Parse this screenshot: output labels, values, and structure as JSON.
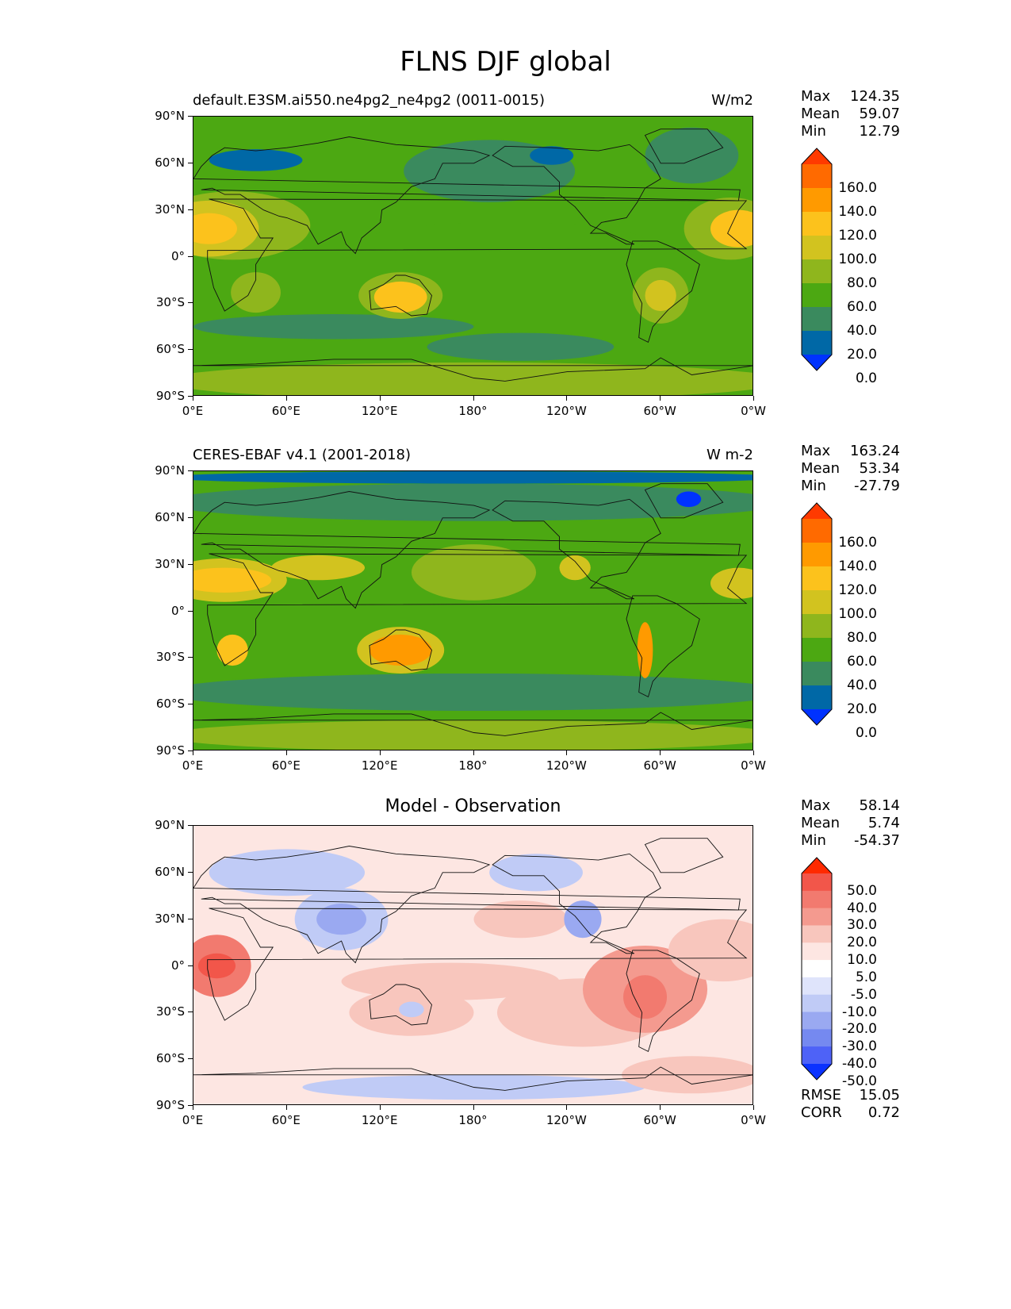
{
  "figure_title": "FLNS DJF global",
  "chart_data": [
    {
      "type": "heatmap",
      "title_left": "default.E3SM.ai550.ne4pg2_ne4pg2 (0011-0015)",
      "title_right": "W/m2",
      "stats": [
        {
          "label": "Max",
          "value": "124.35"
        },
        {
          "label": "Mean",
          "value": "59.07"
        },
        {
          "label": "Min",
          "value": "12.79"
        }
      ],
      "x_ticks": [
        "0°E",
        "60°E",
        "120°E",
        "180°",
        "120°W",
        "60°W",
        "0°W"
      ],
      "y_ticks": [
        "90°N",
        "60°N",
        "30°N",
        "0°",
        "30°S",
        "60°S",
        "90°S"
      ],
      "colorbar_levels": [
        "160.0",
        "140.0",
        "120.0",
        "100.0",
        "80.0",
        "60.0",
        "40.0",
        "20.0",
        "0.0"
      ],
      "colorbar_colors": [
        "#ff3a00",
        "#ff6a00",
        "#ff9a00",
        "#fcc21c",
        "#d2c31f",
        "#8fb61d",
        "#4ca812",
        "#3a8a5e",
        "#0068a6",
        "#0032ff"
      ],
      "blobs": [
        {
          "lon": 10,
          "lat": 18,
          "rx": 18,
          "ry": 10,
          "level": 3
        },
        {
          "lon": 10,
          "lat": 18,
          "rx": 32,
          "ry": 18,
          "level": 4
        },
        {
          "lon": 25,
          "lat": 20,
          "rx": 50,
          "ry": 22,
          "level": 5
        },
        {
          "lon": 40,
          "lat": -23,
          "rx": 16,
          "ry": 13,
          "level": 5
        },
        {
          "lon": 133,
          "lat": -26,
          "rx": 17,
          "ry": 10,
          "level": 3
        },
        {
          "lon": 133,
          "lat": -25,
          "rx": 27,
          "ry": 15,
          "level": 5
        },
        {
          "lon": 300,
          "lat": -25,
          "rx": 10,
          "ry": 10,
          "level": 4
        },
        {
          "lon": 300,
          "lat": -25,
          "rx": 18,
          "ry": 18,
          "level": 5
        },
        {
          "lon": 350,
          "lat": 18,
          "rx": 18,
          "ry": 12,
          "level": 3
        },
        {
          "lon": 345,
          "lat": 18,
          "rx": 30,
          "ry": 20,
          "level": 5
        },
        {
          "lon": 200,
          "lat": 10,
          "rx": 90,
          "ry": 12,
          "level": 6
        },
        {
          "lon": 40,
          "lat": 62,
          "rx": 30,
          "ry": 7,
          "level": 8
        },
        {
          "lon": 230,
          "lat": 65,
          "rx": 14,
          "ry": 6,
          "level": 8
        },
        {
          "lon": 190,
          "lat": 55,
          "rx": 55,
          "ry": 20,
          "level": 7
        },
        {
          "lon": 320,
          "lat": 65,
          "rx": 30,
          "ry": 18,
          "level": 7
        },
        {
          "lon": 90,
          "lat": -45,
          "rx": 90,
          "ry": 8,
          "level": 7
        },
        {
          "lon": 210,
          "lat": -58,
          "rx": 60,
          "ry": 9,
          "level": 7
        },
        {
          "lon": 180,
          "lat": -80,
          "rx": 200,
          "ry": 12,
          "level": 5
        }
      ],
      "base_level": 6
    },
    {
      "type": "heatmap",
      "title_left": "CERES-EBAF v4.1 (2001-2018)",
      "title_right": "W m-2",
      "stats": [
        {
          "label": "Max",
          "value": "163.24"
        },
        {
          "label": "Mean",
          "value": "53.34"
        },
        {
          "label": "Min",
          "value": "-27.79"
        }
      ],
      "x_ticks": [
        "0°E",
        "60°E",
        "120°E",
        "180°",
        "120°W",
        "60°W",
        "0°W"
      ],
      "y_ticks": [
        "90°N",
        "60°N",
        "30°N",
        "0°",
        "30°S",
        "60°S",
        "90°S"
      ],
      "colorbar_levels": [
        "160.0",
        "140.0",
        "120.0",
        "100.0",
        "80.0",
        "60.0",
        "40.0",
        "20.0",
        "0.0"
      ],
      "colorbar_colors": [
        "#ff3a00",
        "#ff6a00",
        "#ff9a00",
        "#fcc21c",
        "#d2c31f",
        "#8fb61d",
        "#4ca812",
        "#3a8a5e",
        "#0068a6",
        "#0032ff"
      ],
      "blobs": [
        {
          "lon": 180,
          "lat": 86,
          "rx": 200,
          "ry": 4,
          "level": 8
        },
        {
          "lon": 180,
          "lat": 70,
          "rx": 200,
          "ry": 12,
          "level": 7
        },
        {
          "lon": 318,
          "lat": 72,
          "rx": 8,
          "ry": 5,
          "level": 9
        },
        {
          "lon": 20,
          "lat": 20,
          "rx": 40,
          "ry": 14,
          "level": 4
        },
        {
          "lon": 20,
          "lat": 20,
          "rx": 30,
          "ry": 8,
          "level": 3
        },
        {
          "lon": 80,
          "lat": 28,
          "rx": 30,
          "ry": 8,
          "level": 4
        },
        {
          "lon": 25,
          "lat": -25,
          "rx": 10,
          "ry": 10,
          "level": 3
        },
        {
          "lon": 133,
          "lat": -25,
          "rx": 20,
          "ry": 10,
          "level": 2
        },
        {
          "lon": 133,
          "lat": -25,
          "rx": 28,
          "ry": 15,
          "level": 4
        },
        {
          "lon": 290,
          "lat": -25,
          "rx": 5,
          "ry": 18,
          "level": 2
        },
        {
          "lon": 245,
          "lat": 28,
          "rx": 10,
          "ry": 8,
          "level": 4
        },
        {
          "lon": 350,
          "lat": 18,
          "rx": 18,
          "ry": 10,
          "level": 4
        },
        {
          "lon": 180,
          "lat": -52,
          "rx": 200,
          "ry": 12,
          "level": 7
        },
        {
          "lon": 180,
          "lat": 25,
          "rx": 40,
          "ry": 18,
          "level": 5
        },
        {
          "lon": 180,
          "lat": -80,
          "rx": 200,
          "ry": 10,
          "level": 5
        }
      ],
      "base_level": 6
    },
    {
      "type": "heatmap",
      "title_center": "Model - Observation",
      "stats": [
        {
          "label": "Max",
          "value": "58.14"
        },
        {
          "label": "Mean",
          "value": "5.74"
        },
        {
          "label": "Min",
          "value": "-54.37"
        }
      ],
      "metrics": [
        {
          "label": "RMSE",
          "value": "15.05"
        },
        {
          "label": "CORR",
          "value": "0.72"
        }
      ],
      "x_ticks": [
        "0°E",
        "60°E",
        "120°E",
        "180°",
        "120°W",
        "60°W",
        "0°W"
      ],
      "y_ticks": [
        "90°N",
        "60°N",
        "30°N",
        "0°",
        "30°S",
        "60°S",
        "90°S"
      ],
      "colorbar_levels": [
        "50.0",
        "40.0",
        "30.0",
        "20.0",
        "10.0",
        "5.0",
        "-5.0",
        "-10.0",
        "-20.0",
        "-30.0",
        "-40.0",
        "-50.0"
      ],
      "colorbar_colors": [
        "#ff2a00",
        "#f2564a",
        "#f27a6f",
        "#f49a8f",
        "#f8c6bd",
        "#fde6e2",
        "#ffffff",
        "#dfe4fb",
        "#c0cbf6",
        "#9aa9f1",
        "#7589f0",
        "#4e62f7",
        "#0a32ff"
      ],
      "blobs": [
        {
          "lon": 15,
          "lat": 0,
          "rx": 22,
          "ry": 20,
          "level": 2
        },
        {
          "lon": 15,
          "lat": 0,
          "rx": 12,
          "ry": 8,
          "level": 1
        },
        {
          "lon": 290,
          "lat": -15,
          "rx": 40,
          "ry": 28,
          "level": 3
        },
        {
          "lon": 290,
          "lat": -20,
          "rx": 14,
          "ry": 14,
          "level": 2
        },
        {
          "lon": 165,
          "lat": -10,
          "rx": 70,
          "ry": 12,
          "level": 4
        },
        {
          "lon": 140,
          "lat": -30,
          "rx": 40,
          "ry": 15,
          "level": 4
        },
        {
          "lon": 250,
          "lat": -30,
          "rx": 55,
          "ry": 22,
          "level": 4
        },
        {
          "lon": 210,
          "lat": 30,
          "rx": 30,
          "ry": 12,
          "level": 4
        },
        {
          "lon": 340,
          "lat": 10,
          "rx": 35,
          "ry": 20,
          "level": 4
        },
        {
          "lon": 320,
          "lat": -70,
          "rx": 45,
          "ry": 12,
          "level": 4
        },
        {
          "lon": 95,
          "lat": 30,
          "rx": 16,
          "ry": 10,
          "level": 9
        },
        {
          "lon": 95,
          "lat": 30,
          "rx": 30,
          "ry": 20,
          "level": 8
        },
        {
          "lon": 60,
          "lat": 60,
          "rx": 50,
          "ry": 15,
          "level": 8
        },
        {
          "lon": 250,
          "lat": 30,
          "rx": 12,
          "ry": 12,
          "level": 9
        },
        {
          "lon": 220,
          "lat": 60,
          "rx": 30,
          "ry": 12,
          "level": 8
        },
        {
          "lon": 140,
          "lat": -28,
          "rx": 8,
          "ry": 5,
          "level": 8
        },
        {
          "lon": 180,
          "lat": -78,
          "rx": 110,
          "ry": 8,
          "level": 8
        }
      ],
      "base_level": 5
    }
  ]
}
